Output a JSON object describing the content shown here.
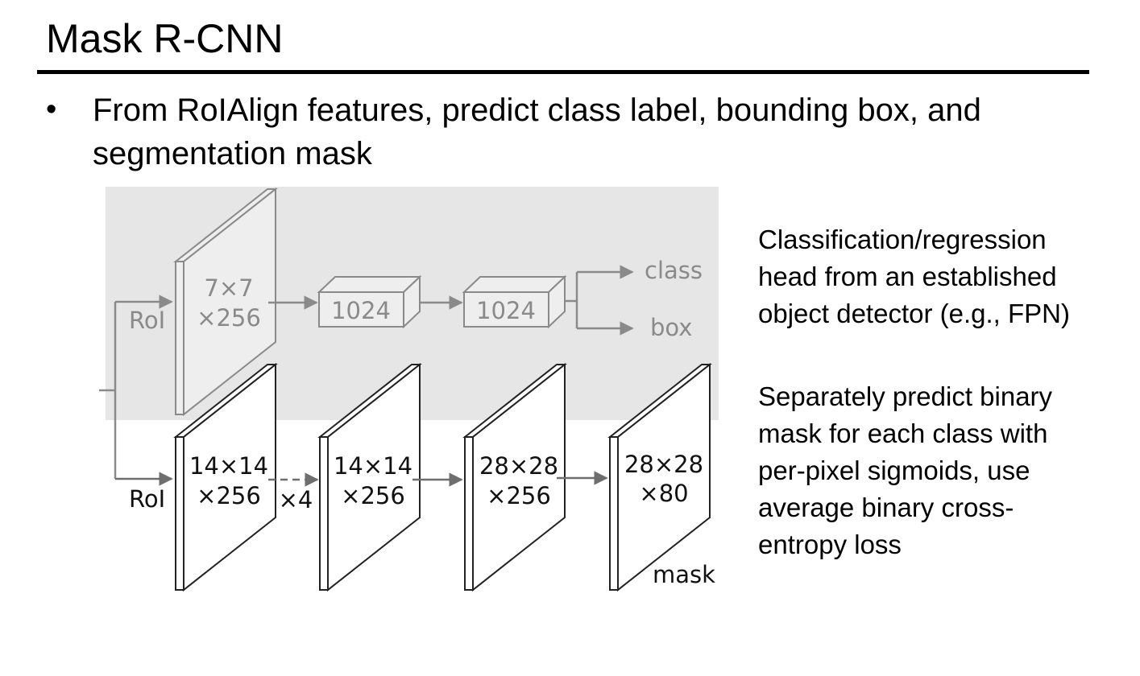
{
  "slide": {
    "title": "Mask R-CNN",
    "bullet_marker": "•",
    "bullet_text": "From RoIAlign features, predict class label, bounding box, and segmentation mask"
  },
  "diagram": {
    "head_top": {
      "roi_label": "RoI",
      "feature_map_line1": "7×7",
      "feature_map_line2": "×256",
      "fc1_label": "1024",
      "fc2_label": "1024",
      "class_output": "class",
      "box_output": "box"
    },
    "head_mask": {
      "roi_label": "RoI",
      "map1_line1": "14×14",
      "map1_line2": "×256",
      "repeat_label": "×4",
      "map2_line1": "14×14",
      "map2_line2": "×256",
      "map3_line1": "28×28",
      "map3_line2": "×256",
      "map4_line1": "28×28",
      "map4_line2": "×80",
      "mask_output": "mask"
    },
    "colors": {
      "shaded_region": "#e6e6e6",
      "gray_stroke": "#8a8a8a",
      "black_stroke": "#222222"
    }
  },
  "notes": {
    "classification_head": "Classification/regression\nhead from an established\nobject detector (e.g., FPN)",
    "mask_head": "Separately predict binary\nmask for each class with\nper-pixel sigmoids, use\naverage binary cross-\nentropy loss"
  }
}
